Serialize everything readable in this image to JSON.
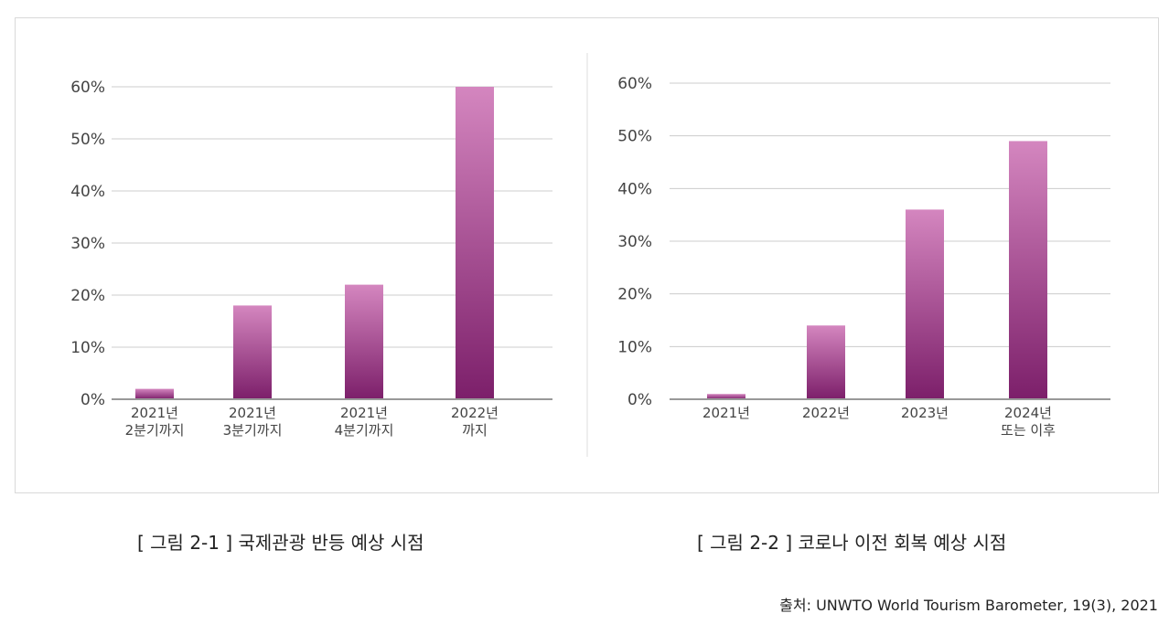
{
  "chart_data": [
    {
      "type": "bar",
      "categories": [
        [
          "2021년",
          "2분기까지"
        ],
        [
          "2021년",
          "3분기까지"
        ],
        [
          "2021년",
          "4분기까지"
        ],
        [
          "2022년",
          "까지"
        ]
      ],
      "values": [
        2,
        18,
        22,
        60
      ],
      "ylim": [
        0,
        60
      ],
      "yticks": [
        "0%",
        "10%",
        "20%",
        "30%",
        "40%",
        "50%",
        "60%"
      ],
      "grid": true
    },
    {
      "type": "bar",
      "categories": [
        [
          "2021년"
        ],
        [
          "2022년"
        ],
        [
          "2023년"
        ],
        [
          "2024년",
          "또는 이후"
        ]
      ],
      "values": [
        1,
        14,
        36,
        49
      ],
      "ylim": [
        0,
        60
      ],
      "yticks": [
        "0%",
        "10%",
        "20%",
        "30%",
        "40%",
        "50%",
        "60%"
      ],
      "grid": true
    }
  ],
  "captions": {
    "left": "[ 그림 2-1 ] 국제관광 반등 예상 시점",
    "right": "[ 그림 2-2 ] 코로나 이전 회복 예상 시점"
  },
  "source": "출처: UNWTO World Tourism Barometer, 19(3), 2021",
  "colors": {
    "bar_top": "#d486bf",
    "bar_bottom": "#7c1f6a",
    "grid": "#cccccc",
    "axis": "#999999",
    "text": "#444444"
  }
}
